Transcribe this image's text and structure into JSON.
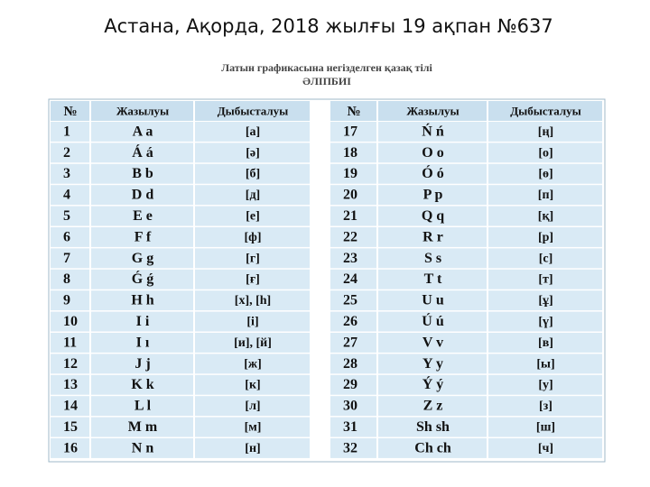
{
  "title": "Астана, Ақорда, 2018 жылғы 19 ақпан №637",
  "table": {
    "caption": [
      "Латын графикасына негізделген қазақ тілі",
      "ӘЛІПБИІ"
    ],
    "left": {
      "header": [
        "№",
        "Жазылуы",
        "Дыбысталуы"
      ],
      "rows": [
        {
          "no": "1",
          "letter": "A a",
          "sound": "[а]",
          "color": "#111111"
        },
        {
          "no": "2",
          "letter": "Á á",
          "sound": "[ә]",
          "color": "#e0201c"
        },
        {
          "no": "3",
          "letter": "B b",
          "sound": "[б]",
          "color": "#111111"
        },
        {
          "no": "4",
          "letter": "D d",
          "sound": "[д]",
          "color": "#111111"
        },
        {
          "no": "5",
          "letter": "E e",
          "sound": "[е]",
          "color": "#111111"
        },
        {
          "no": "6",
          "letter": "F f",
          "sound": "[ф]",
          "color": "#111111"
        },
        {
          "no": "7",
          "letter": "G g",
          "sound": "[г]",
          "color": "#111111"
        },
        {
          "no": "8",
          "letter": "Ǵ ǵ",
          "sound": "[ғ]",
          "color": "#e0201c"
        },
        {
          "no": "9",
          "letter": "H h",
          "sound": "[х], [һ]",
          "color": "#111111"
        },
        {
          "no": "10",
          "letter": "I i",
          "sound": "[і]",
          "color": "#111111"
        },
        {
          "no": "11",
          "letter": "I ı",
          "sound": "[и], [й]",
          "color": "#111111"
        },
        {
          "no": "12",
          "letter": "J j",
          "sound": "[ж]",
          "color": "#111111"
        },
        {
          "no": "13",
          "letter": "K k",
          "sound": "[к]",
          "color": "#111111"
        },
        {
          "no": "14",
          "letter": "L l",
          "sound": "[л]",
          "color": "#111111"
        },
        {
          "no": "15",
          "letter": "M m",
          "sound": "[м]",
          "color": "#111111"
        },
        {
          "no": "16",
          "letter": "N n",
          "sound": "[н]",
          "color": "#111111"
        }
      ]
    },
    "right": {
      "header": [
        "№",
        "Жазылуы",
        "Дыбысталуы"
      ],
      "rows": [
        {
          "no": "17",
          "letter": "Ń ń",
          "sound": "[ң]",
          "color": "#e0201c"
        },
        {
          "no": "18",
          "letter": "O o",
          "sound": "[о]",
          "color": "#111111"
        },
        {
          "no": "19",
          "letter": "Ó ó",
          "sound": "[ө]",
          "color": "#e0201c"
        },
        {
          "no": "20",
          "letter": "P p",
          "sound": "[п]",
          "color": "#111111"
        },
        {
          "no": "21",
          "letter": "Q q",
          "sound": "[қ]",
          "color": "#111111"
        },
        {
          "no": "22",
          "letter": "R r",
          "sound": "[р]",
          "color": "#111111"
        },
        {
          "no": "23",
          "letter": "S s",
          "sound": "[с]",
          "color": "#111111"
        },
        {
          "no": "24",
          "letter": "T t",
          "sound": "[т]",
          "color": "#111111"
        },
        {
          "no": "25",
          "letter": "U u",
          "sound": "[ұ]",
          "color": "#111111"
        },
        {
          "no": "26",
          "letter": "Ú ú",
          "sound": "[ү]",
          "color": "#e0201c"
        },
        {
          "no": "27",
          "letter": "V v",
          "sound": "[в]",
          "color": "#111111"
        },
        {
          "no": "28",
          "letter": "Y y",
          "sound": "[ы]",
          "color": "#111111"
        },
        {
          "no": "29",
          "letter": "Ý ý",
          "sound": "[у]",
          "color": "#e0201c"
        },
        {
          "no": "30",
          "letter": "Z z",
          "sound": "[з]",
          "color": "#111111"
        },
        {
          "no": "31",
          "letter": "Sh sh",
          "sound": "[ш]",
          "color": "#2a9a3a"
        },
        {
          "no": "32",
          "letter": "Ch ch",
          "sound": "[ч]",
          "color": "#2a9a3a"
        }
      ]
    }
  }
}
